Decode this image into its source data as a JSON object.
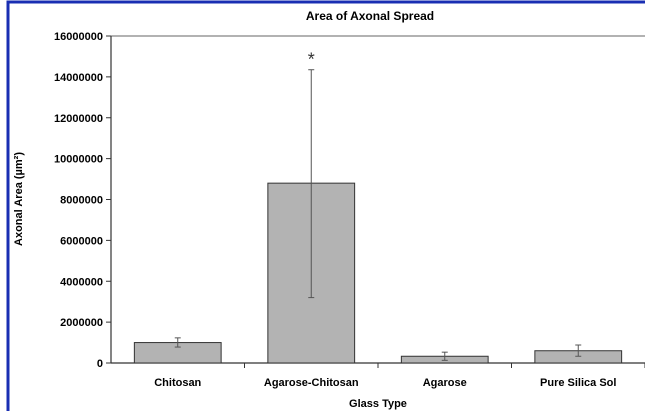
{
  "chart_data": {
    "type": "bar",
    "title": "Area of Axonal Spread",
    "xlabel": "Glass Type",
    "ylabel": "Axonal Area (µm²)",
    "categories": [
      "Chitosan",
      "Agarose-Chitosan",
      "Agarose",
      "Pure Silica Sol"
    ],
    "values": [
      1000000,
      8800000,
      330000,
      600000
    ],
    "error_bars": [
      {
        "low": 780000,
        "high": 1230000
      },
      {
        "low": 3200000,
        "high": 14350000
      },
      {
        "low": 130000,
        "high": 530000
      },
      {
        "low": 330000,
        "high": 880000
      }
    ],
    "annotations": [
      {
        "category": "Agarose-Chitosan",
        "text": "*"
      }
    ],
    "ylim": [
      0,
      16000000
    ],
    "yticks": [
      0,
      2000000,
      4000000,
      6000000,
      8000000,
      10000000,
      12000000,
      14000000,
      16000000
    ],
    "ytick_labels": [
      "0",
      "2000000",
      "4000000",
      "6000000",
      "8000000",
      "10000000",
      "12000000",
      "14000000",
      "16000000"
    ],
    "grid": false,
    "legend": "none",
    "colors": {
      "bar_fill": "#b3b3b3",
      "bar_stroke": "#333333",
      "frame": "#1a2fb3",
      "error": "#555555"
    }
  }
}
